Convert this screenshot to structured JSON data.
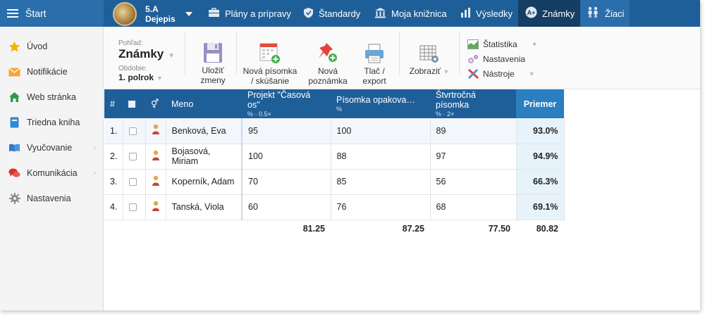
{
  "topbar": {
    "start_label": "Štart",
    "class_code": "5.A",
    "class_subject": "Dejepis",
    "nav": [
      {
        "label": "Plány a prípravy",
        "icon": "briefcase-icon"
      },
      {
        "label": "Štandardy",
        "icon": "shield-check-icon"
      },
      {
        "label": "Moja knižnica",
        "icon": "library-icon"
      },
      {
        "label": "Výsledky",
        "icon": "bar-chart-icon"
      },
      {
        "label": "Známky",
        "icon": "grades-icon",
        "active": true
      },
      {
        "label": "Žiaci",
        "icon": "students-icon"
      }
    ]
  },
  "sidebar": {
    "items": [
      {
        "label": "Úvod",
        "icon": "star-icon",
        "has_children": false
      },
      {
        "label": "Notifikácie",
        "icon": "envelope-icon",
        "has_children": false
      },
      {
        "label": "Web stránka",
        "icon": "home-icon",
        "has_children": false
      },
      {
        "label": "Triedna kniha",
        "icon": "book-icon",
        "has_children": false
      },
      {
        "label": "Vyučovanie",
        "icon": "open-book-icon",
        "has_children": true
      },
      {
        "label": "Komunikácia",
        "icon": "chat-icon",
        "has_children": true
      },
      {
        "label": "Nastavenia",
        "icon": "gear-icon",
        "has_children": false
      }
    ]
  },
  "toolbar": {
    "view_label": "Pohľad:",
    "view_value": "Známky",
    "period_label": "Obdobie:",
    "period_value": "1. polrok",
    "save_label_1": "Uložiť",
    "save_label_2": "zmeny",
    "new_test_1": "Nová písomka",
    "new_test_2": "/ skúšanie",
    "new_note_1": "Nová",
    "new_note_2": "poznámka",
    "print_1": "Tlač /",
    "print_2": "export",
    "display_label": "Zobraziť",
    "list": [
      {
        "label": "Štatistika",
        "icon": "statistics-icon"
      },
      {
        "label": "Nastavenia",
        "icon": "settings-icon"
      },
      {
        "label": "Nástroje",
        "icon": "tools-icon"
      }
    ]
  },
  "table": {
    "headers": {
      "num": "#",
      "name": "Meno",
      "cols": [
        {
          "title": "Projekt \"Časová os\"",
          "sub": "% · 0.5×"
        },
        {
          "title": "Písomka opakova…",
          "sub": "%"
        },
        {
          "title": "Štvrtročná písomka",
          "sub": "% · 2×"
        }
      ],
      "avg": "Priemer"
    },
    "rows": [
      {
        "num": "1.",
        "name": "Benková, Eva",
        "g1": "95",
        "g2": "100",
        "g3": "89",
        "avg": "93.0%"
      },
      {
        "num": "2.",
        "name": "Bojasová, Miriam",
        "g1": "100",
        "g2": "88",
        "g3": "97",
        "avg": "94.9%"
      },
      {
        "num": "3.",
        "name": "Koperník, Adam",
        "g1": "70",
        "g2": "85",
        "g3": "56",
        "avg": "66.3%"
      },
      {
        "num": "4.",
        "name": "Tanská, Viola",
        "g1": "60",
        "g2": "76",
        "g3": "68",
        "avg": "69.1%"
      }
    ],
    "footer": {
      "c1": "81.25",
      "c2": "87.25",
      "c3": "77.50",
      "avg": "80.82"
    }
  }
}
